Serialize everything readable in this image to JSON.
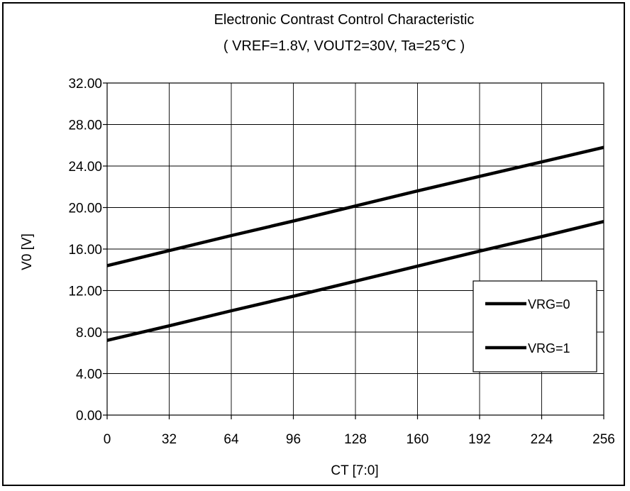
{
  "chart_data": {
    "type": "line",
    "title": "Electronic Contrast Control Characteristic",
    "subtitle": "( VREF=1.8V, VOUT2=30V, Ta=25℃ )",
    "xlabel": "CT [7:0]",
    "ylabel": "V0 [V]",
    "xlim": [
      0,
      256
    ],
    "ylim": [
      0,
      32
    ],
    "x_ticks": [
      "0",
      "32",
      "64",
      "96",
      "128",
      "160",
      "192",
      "224",
      "256"
    ],
    "y_ticks": [
      "0.00",
      "4.00",
      "8.00",
      "12.00",
      "16.00",
      "20.00",
      "24.00",
      "28.00",
      "32.00"
    ],
    "grid": true,
    "legend_position": "right",
    "series": [
      {
        "name": "VRG=0",
        "color": "#000000",
        "x": [
          0,
          32,
          64,
          96,
          128,
          160,
          192,
          224,
          256
        ],
        "values": [
          14.4,
          15.85,
          17.3,
          18.7,
          20.15,
          21.6,
          23.0,
          24.4,
          25.8
        ]
      },
      {
        "name": "VRG=1",
        "color": "#000000",
        "x": [
          0,
          32,
          64,
          96,
          128,
          160,
          192,
          224,
          256
        ],
        "values": [
          7.2,
          8.6,
          10.05,
          11.45,
          12.9,
          14.35,
          15.8,
          17.2,
          18.65
        ]
      }
    ]
  }
}
